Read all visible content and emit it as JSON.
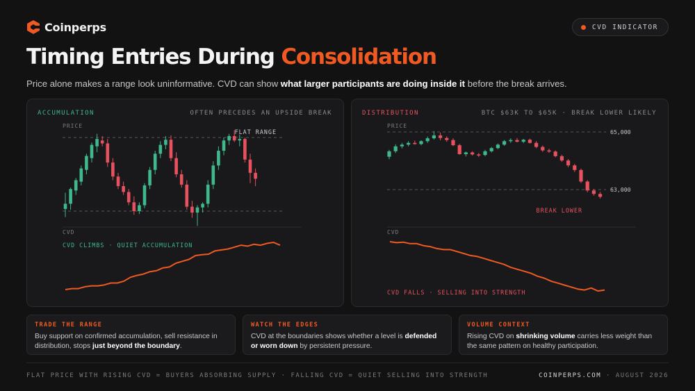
{
  "brand": {
    "name": "Coinperps",
    "accent": "#f05a22"
  },
  "badge": {
    "label": "CVD INDICATOR"
  },
  "title": {
    "prefix": "Timing Entries During ",
    "highlight": "Consolidation"
  },
  "subtitle": {
    "before": "Price alone makes a range look uninformative. CVD can show ",
    "bold": "what larger participants are doing inside it",
    "after": " before the break arrives."
  },
  "panels": {
    "left": {
      "tag": "ACCUMULATION",
      "note": "OFTEN PRECEDES AN UPSIDE BREAK",
      "price_label": "PRICE",
      "range_label": "FLAT RANGE",
      "cvd_label": "CVD",
      "cvd_caption": "CVD CLIMBS · QUIET ACCUMULATION"
    },
    "right": {
      "tag": "DISTRIBUTION",
      "note": "BTC $63K TO $65K · BREAK LOWER LIKELY",
      "price_label": "PRICE",
      "level_high": "65,000",
      "level_low": "63,000",
      "break_label": "BREAK LOWER",
      "cvd_label": "CVD",
      "cvd_caption": "CVD FALLS · SELLING INTO STRENGTH"
    }
  },
  "cards": [
    {
      "title": "TRADE THE RANGE",
      "parts": [
        "Buy support on confirmed accumulation, sell resistance in distribution, stops ",
        "just beyond the boundary",
        "."
      ]
    },
    {
      "title": "WATCH THE EDGES",
      "parts": [
        "CVD at the boundaries shows whether a level is ",
        "defended or worn down",
        " by persistent pressure."
      ]
    },
    {
      "title": "VOLUME CONTEXT",
      "parts": [
        "Rising CVD on ",
        "shrinking volume",
        " carries less weight than the same pattern on healthy participation."
      ]
    }
  ],
  "footer": {
    "left": "FLAT PRICE WITH RISING CVD = BUYERS ABSORBING SUPPLY · FALLING CVD = QUIET SELLING INTO STRENGTH",
    "site": "COINPERPS.COM",
    "sep": " · ",
    "date": "AUGUST 2026"
  },
  "chart_data": [
    {
      "type": "candlestick",
      "title": "ACCUMULATION",
      "colors": {
        "up": "#3fb98c",
        "down": "#e8525f",
        "cvd": "#f05a22",
        "tag": "#3fb98c"
      },
      "range_bounds": {
        "top": 1.0,
        "bottom": 0.0
      },
      "ohlc": [
        [
          0.03,
          0.25,
          -0.08,
          0.1
        ],
        [
          0.1,
          0.32,
          0.02,
          0.3
        ],
        [
          0.28,
          0.45,
          0.22,
          0.42
        ],
        [
          0.4,
          0.62,
          0.35,
          0.58
        ],
        [
          0.56,
          0.78,
          0.5,
          0.75
        ],
        [
          0.72,
          0.93,
          0.66,
          0.9
        ],
        [
          0.88,
          1.05,
          0.8,
          0.98
        ],
        [
          0.96,
          1.02,
          0.88,
          0.92
        ],
        [
          0.92,
          0.98,
          0.6,
          0.66
        ],
        [
          0.66,
          0.72,
          0.42,
          0.47
        ],
        [
          0.47,
          0.52,
          0.3,
          0.34
        ],
        [
          0.34,
          0.4,
          0.22,
          0.26
        ],
        [
          0.26,
          0.3,
          0.08,
          0.12
        ],
        [
          0.12,
          0.2,
          -0.05,
          0.0
        ],
        [
          0.0,
          0.12,
          -0.04,
          0.08
        ],
        [
          0.08,
          0.38,
          0.04,
          0.35
        ],
        [
          0.35,
          0.6,
          0.3,
          0.56
        ],
        [
          0.56,
          0.82,
          0.5,
          0.78
        ],
        [
          0.78,
          0.95,
          0.72,
          0.9
        ],
        [
          0.9,
          1.02,
          0.84,
          0.97
        ],
        [
          0.97,
          1.03,
          0.68,
          0.72
        ],
        [
          0.72,
          0.8,
          0.46,
          0.5
        ],
        [
          0.5,
          0.56,
          0.32,
          0.36
        ],
        [
          0.36,
          0.42,
          0.02,
          0.06
        ],
        [
          0.06,
          0.14,
          -0.09,
          -0.02
        ],
        [
          -0.02,
          0.08,
          -0.2,
          0.05
        ],
        [
          0.05,
          0.12,
          -0.02,
          0.1
        ],
        [
          0.1,
          0.42,
          0.05,
          0.36
        ],
        [
          0.36,
          0.68,
          0.3,
          0.62
        ],
        [
          0.62,
          0.88,
          0.56,
          0.82
        ],
        [
          0.82,
          1.0,
          0.76,
          0.96
        ],
        [
          0.96,
          1.05,
          0.9,
          1.02
        ],
        [
          1.02,
          1.1,
          0.94,
          0.96
        ],
        [
          0.96,
          1.04,
          0.88,
          0.98
        ],
        [
          0.98,
          1.0,
          0.66,
          0.7
        ],
        [
          0.7,
          0.78,
          0.38,
          0.52
        ],
        [
          0.52,
          0.58,
          0.34,
          0.44
        ]
      ],
      "cvd": [
        0.0,
        0.02,
        0.02,
        0.06,
        0.08,
        0.08,
        0.1,
        0.14,
        0.14,
        0.18,
        0.26,
        0.3,
        0.33,
        0.38,
        0.4,
        0.46,
        0.48,
        0.56,
        0.6,
        0.64,
        0.72,
        0.74,
        0.75,
        0.82,
        0.84,
        0.86,
        0.9,
        0.94,
        0.92,
        0.96,
        0.94,
        0.98,
        1.0,
        0.94
      ]
    },
    {
      "type": "candlestick",
      "title": "DISTRIBUTION",
      "colors": {
        "up": "#3fb98c",
        "down": "#e8525f",
        "cvd": "#f05a22",
        "tag": "#e8525f"
      },
      "ylim": [
        62300,
        65300
      ],
      "levels": [
        65000,
        63000
      ],
      "ohlc": [
        [
          64140,
          64380,
          64050,
          64330
        ],
        [
          64330,
          64570,
          64270,
          64500
        ],
        [
          64500,
          64620,
          64430,
          64560
        ],
        [
          64560,
          64680,
          64500,
          64620
        ],
        [
          64620,
          64700,
          64560,
          64580
        ],
        [
          64580,
          64710,
          64540,
          64680
        ],
        [
          64680,
          64840,
          64620,
          64780
        ],
        [
          64780,
          65030,
          64740,
          64880
        ],
        [
          64880,
          64980,
          64710,
          64790
        ],
        [
          64790,
          64850,
          64660,
          64720
        ],
        [
          64720,
          64780,
          64510,
          64540
        ],
        [
          64540,
          64590,
          64210,
          64230
        ],
        [
          64230,
          64320,
          64150,
          64290
        ],
        [
          64290,
          64330,
          64180,
          64220
        ],
        [
          64220,
          64270,
          64130,
          64200
        ],
        [
          64200,
          64380,
          64160,
          64330
        ],
        [
          64330,
          64480,
          64290,
          64440
        ],
        [
          64440,
          64600,
          64400,
          64560
        ],
        [
          64560,
          64720,
          64520,
          64680
        ],
        [
          64680,
          64780,
          64620,
          64720
        ],
        [
          64720,
          64790,
          64640,
          64660
        ],
        [
          64660,
          64760,
          64610,
          64730
        ],
        [
          64730,
          64770,
          64600,
          64620
        ],
        [
          64620,
          64680,
          64440,
          64480
        ],
        [
          64480,
          64530,
          64310,
          64360
        ],
        [
          64360,
          64420,
          64270,
          64320
        ],
        [
          64320,
          64360,
          64120,
          64160
        ],
        [
          64160,
          64210,
          63960,
          64010
        ],
        [
          64010,
          64060,
          63780,
          63840
        ],
        [
          63840,
          63890,
          63610,
          63680
        ],
        [
          63680,
          63730,
          63230,
          63280
        ],
        [
          63280,
          63330,
          62910,
          62970
        ],
        [
          62970,
          63020,
          62790,
          62850
        ],
        [
          62850,
          62920,
          62690,
          62750
        ]
      ],
      "cvd": [
        1.0,
        0.98,
        0.99,
        0.96,
        0.96,
        0.92,
        0.9,
        0.86,
        0.84,
        0.84,
        0.8,
        0.76,
        0.72,
        0.7,
        0.66,
        0.62,
        0.58,
        0.54,
        0.48,
        0.44,
        0.4,
        0.36,
        0.3,
        0.26,
        0.2,
        0.16,
        0.12,
        0.08,
        0.04,
        0.02,
        0.06,
        0.0,
        0.02
      ]
    }
  ]
}
